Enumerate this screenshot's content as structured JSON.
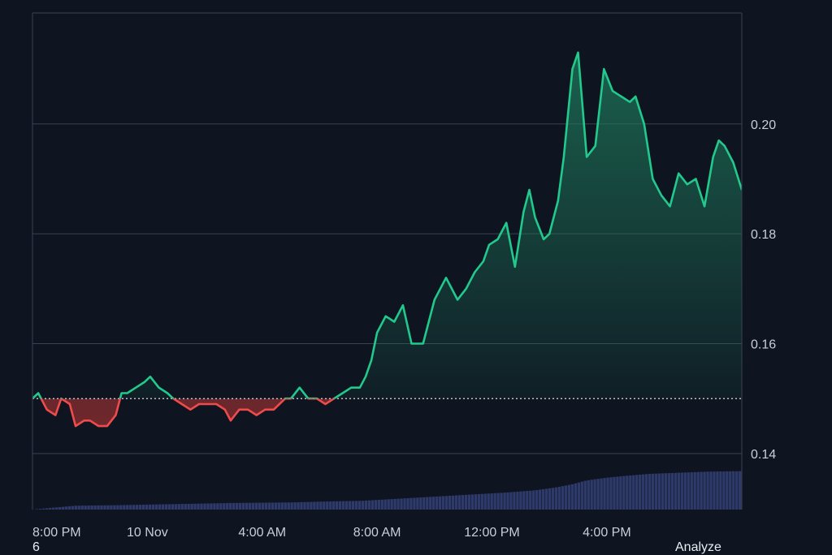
{
  "chart_data": {
    "type": "area",
    "baseline": 0.15,
    "y_ticks": [
      0.14,
      0.16,
      0.18,
      0.2
    ],
    "ylim": [
      0.1298,
      0.2202
    ],
    "x_tick_labels": [
      "8:00 PM",
      "10 Nov",
      "4:00 AM",
      "8:00 AM",
      "12:00 PM",
      "4:00 PM"
    ],
    "x_tick_hours": [
      0,
      4,
      8,
      12,
      16,
      20
    ],
    "x_range_hours": [
      0,
      24.7
    ],
    "x_start_label": "8:00 PM",
    "price": {
      "x": [
        0,
        0.2,
        0.5,
        0.8,
        1.0,
        1.3,
        1.5,
        1.8,
        2.0,
        2.3,
        2.6,
        2.9,
        3.1,
        3.3,
        3.6,
        3.9,
        4.1,
        4.4,
        4.7,
        4.9,
        5.2,
        5.5,
        5.8,
        6.1,
        6.4,
        6.7,
        6.9,
        7.2,
        7.5,
        7.8,
        8.1,
        8.4,
        8.8,
        9.0,
        9.3,
        9.6,
        9.9,
        10.2,
        10.5,
        10.8,
        11.1,
        11.4,
        11.6,
        11.8,
        12.0,
        12.3,
        12.6,
        12.9,
        13.2,
        13.6,
        14.0,
        14.4,
        14.8,
        15.1,
        15.4,
        15.7,
        15.9,
        16.2,
        16.5,
        16.8,
        17.1,
        17.3,
        17.5,
        17.8,
        18.0,
        18.3,
        18.5,
        18.8,
        19.0,
        19.3,
        19.6,
        19.9,
        20.2,
        20.5,
        20.8,
        21.0,
        21.3,
        21.6,
        21.9,
        22.2,
        22.5,
        22.8,
        23.1,
        23.4,
        23.7,
        23.9,
        24.1,
        24.4,
        24.7
      ],
      "y": [
        0.15,
        0.151,
        0.148,
        0.147,
        0.15,
        0.149,
        0.145,
        0.146,
        0.146,
        0.145,
        0.145,
        0.147,
        0.151,
        0.151,
        0.152,
        0.153,
        0.154,
        0.152,
        0.151,
        0.15,
        0.149,
        0.148,
        0.149,
        0.149,
        0.149,
        0.148,
        0.146,
        0.148,
        0.148,
        0.147,
        0.148,
        0.148,
        0.15,
        0.15,
        0.152,
        0.15,
        0.15,
        0.149,
        0.15,
        0.151,
        0.152,
        0.152,
        0.154,
        0.157,
        0.162,
        0.165,
        0.164,
        0.167,
        0.16,
        0.16,
        0.168,
        0.172,
        0.168,
        0.17,
        0.173,
        0.175,
        0.178,
        0.179,
        0.182,
        0.174,
        0.184,
        0.188,
        0.183,
        0.179,
        0.18,
        0.186,
        0.194,
        0.21,
        0.213,
        0.194,
        0.196,
        0.21,
        0.206,
        0.205,
        0.204,
        0.205,
        0.2,
        0.19,
        0.187,
        0.185,
        0.191,
        0.189,
        0.19,
        0.185,
        0.194,
        0.197,
        0.196,
        0.193,
        0.188
      ]
    },
    "volume": {
      "x": [
        0,
        1.5,
        3,
        5,
        7,
        9,
        10.5,
        11.5,
        12.5,
        13.5,
        14.5,
        15.5,
        16.5,
        17.5,
        18.2,
        18.8,
        19.3,
        20,
        20.8,
        21.5,
        22.5,
        23.5,
        24.7
      ],
      "y": [
        0.1298,
        0.1305,
        0.1306,
        0.1308,
        0.131,
        0.1311,
        0.1313,
        0.1314,
        0.1317,
        0.132,
        0.1323,
        0.1326,
        0.1329,
        0.1333,
        0.1338,
        0.1344,
        0.1351,
        0.1356,
        0.136,
        0.1363,
        0.1365,
        0.1367,
        0.1368
      ]
    },
    "colors": {
      "up_line": "#22c98d",
      "down_line": "#f04b4b",
      "up_fill": "#1f7a5c",
      "down_fill": "#7a2a2e",
      "volume": "#2e3a6a",
      "grid": "#3a4252",
      "baseline": "#d8dbe2",
      "background": "#0e1420"
    },
    "grid": true
  },
  "footer": {
    "left_text": "6",
    "right_text": "Analyze"
  }
}
